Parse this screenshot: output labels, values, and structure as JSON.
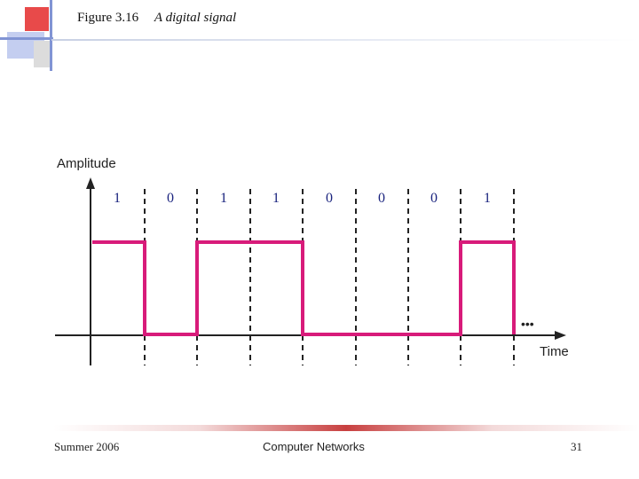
{
  "slide": {
    "figure_number": "Figure 3.16",
    "caption": "A digital signal"
  },
  "diagram": {
    "y_axis_label": "Amplitude",
    "x_axis_label": "Time",
    "bits": [
      "1",
      "0",
      "1",
      "1",
      "0",
      "0",
      "0",
      "1"
    ],
    "continuation": "•••",
    "signal_color": "#d81b7a"
  },
  "footer": {
    "left": "Summer 2006",
    "center": "Computer Networks",
    "right": "31"
  },
  "colors": {
    "deco_red": "#e23a3a",
    "deco_blue": "#7d8fd0",
    "deco_light_blue": "#bfc9ec"
  }
}
